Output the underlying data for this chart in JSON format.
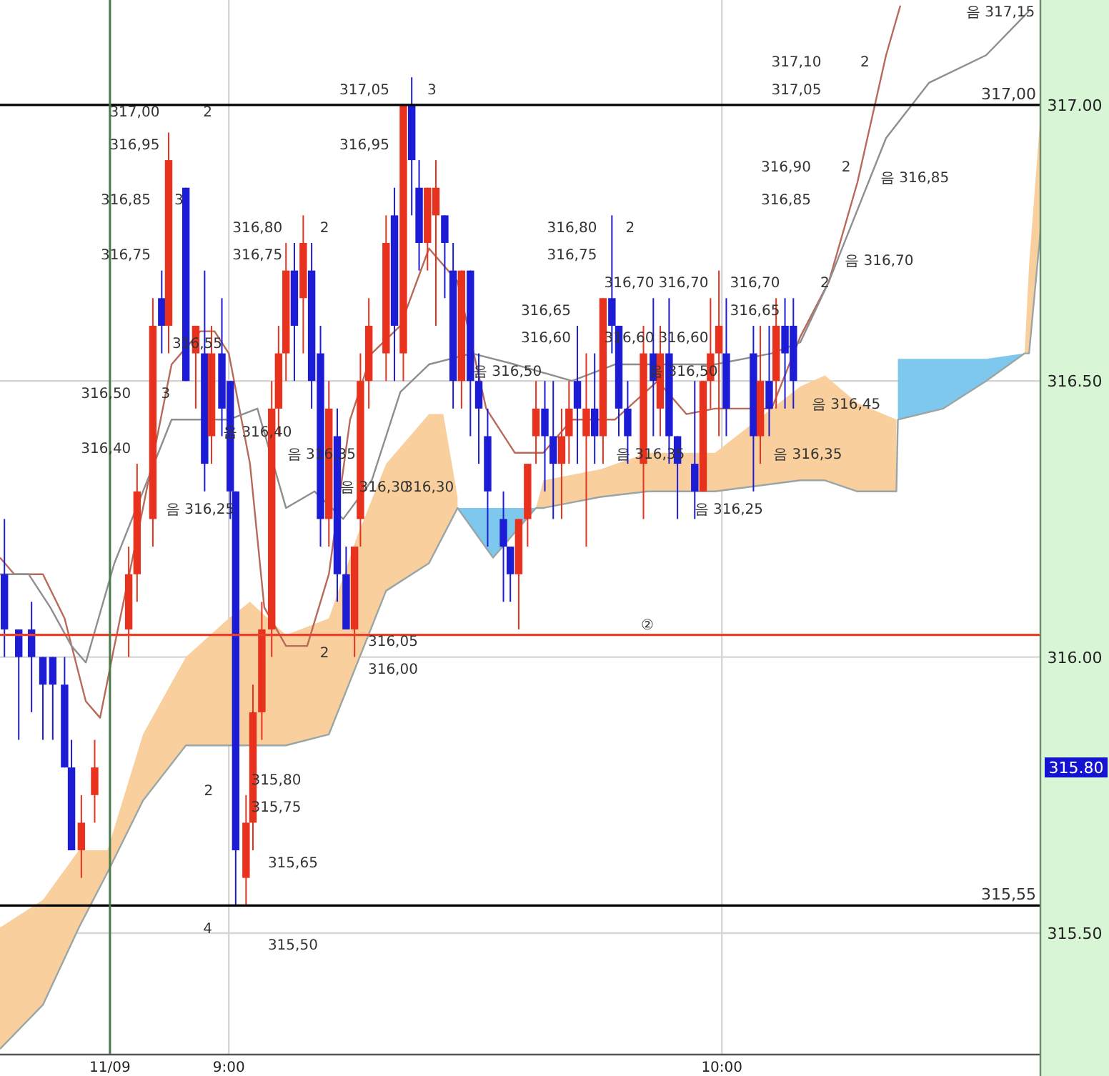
{
  "chart_data": {
    "type": "candlestick",
    "x": [
      8.545,
      8.574,
      8.6,
      8.623,
      8.643,
      8.667,
      8.681,
      8.701,
      8.728,
      8.797,
      8.814,
      8.846,
      8.864,
      8.878,
      8.913,
      8.933,
      8.951,
      8.965,
      8.986,
      9.003,
      9.014,
      9.035,
      9.049,
      9.067,
      9.087,
      9.101,
      9.116,
      9.133,
      9.151,
      9.168,
      9.186,
      9.203,
      9.22,
      9.238,
      9.255,
      9.267,
      9.284,
      9.319,
      9.336,
      9.354,
      9.371,
      9.386,
      9.403,
      9.42,
      9.438,
      9.455,
      9.472,
      9.49,
      9.507,
      9.525,
      9.557,
      9.571,
      9.588,
      9.606,
      9.623,
      9.641,
      9.658,
      9.675,
      9.69,
      9.707,
      9.725,
      9.742,
      9.759,
      9.777,
      9.791,
      9.809,
      9.841,
      9.861,
      9.875,
      9.893,
      9.91,
      9.945,
      9.962,
      9.977,
      9.994,
      10.009,
      10.064,
      10.078,
      10.096,
      10.11,
      10.128,
      10.145
    ],
    "ohlc": [
      [
        316.15,
        316.25,
        316.0,
        316.05
      ],
      [
        316.05,
        316.05,
        315.85,
        316.0
      ],
      [
        316.05,
        316.1,
        315.9,
        316.0
      ],
      [
        316.0,
        316.0,
        315.85,
        315.95
      ],
      [
        316.0,
        316.0,
        315.85,
        315.95
      ],
      [
        315.95,
        316.0,
        315.8,
        315.8
      ],
      [
        315.8,
        315.85,
        315.65,
        315.65
      ],
      [
        315.65,
        315.75,
        315.6,
        315.7
      ],
      [
        315.75,
        315.85,
        315.7,
        315.8
      ],
      [
        316.05,
        316.2,
        316.0,
        316.15
      ],
      [
        316.15,
        316.35,
        316.1,
        316.3
      ],
      [
        316.25,
        316.65,
        316.2,
        316.6
      ],
      [
        316.65,
        316.7,
        316.55,
        316.6
      ],
      [
        316.6,
        316.95,
        316.55,
        316.9
      ],
      [
        316.85,
        316.85,
        316.5,
        316.5
      ],
      [
        316.55,
        316.6,
        316.45,
        316.6
      ],
      [
        316.55,
        316.7,
        316.3,
        316.35
      ],
      [
        316.4,
        316.6,
        316.35,
        316.55
      ],
      [
        316.55,
        316.65,
        316.4,
        316.45
      ],
      [
        316.5,
        316.5,
        316.25,
        316.3
      ],
      [
        316.3,
        316.3,
        315.55,
        315.65
      ],
      [
        315.6,
        315.75,
        315.55,
        315.7
      ],
      [
        315.7,
        315.95,
        315.65,
        315.9
      ],
      [
        315.9,
        316.1,
        315.85,
        316.05
      ],
      [
        316.05,
        316.5,
        316.0,
        316.45
      ],
      [
        316.45,
        316.6,
        316.4,
        316.55
      ],
      [
        316.55,
        316.75,
        316.5,
        316.7
      ],
      [
        316.7,
        316.75,
        316.5,
        316.6
      ],
      [
        316.65,
        316.8,
        316.55,
        316.75
      ],
      [
        316.7,
        316.75,
        316.45,
        316.5
      ],
      [
        316.55,
        316.6,
        316.2,
        316.25
      ],
      [
        316.25,
        316.5,
        316.2,
        316.45
      ],
      [
        316.4,
        316.45,
        316.1,
        316.15
      ],
      [
        316.15,
        316.2,
        316.05,
        316.05
      ],
      [
        316.05,
        316.2,
        316.0,
        316.2
      ],
      [
        316.25,
        316.55,
        316.2,
        316.5
      ],
      [
        316.5,
        316.65,
        316.45,
        316.6
      ],
      [
        316.55,
        316.8,
        316.5,
        316.75
      ],
      [
        316.8,
        316.85,
        316.5,
        316.6
      ],
      [
        316.55,
        317.0,
        316.5,
        317.0
      ],
      [
        317.0,
        317.05,
        316.8,
        316.9
      ],
      [
        316.85,
        316.9,
        316.7,
        316.75
      ],
      [
        316.75,
        316.85,
        316.7,
        316.85
      ],
      [
        316.8,
        316.9,
        316.6,
        316.85
      ],
      [
        316.8,
        316.8,
        316.65,
        316.75
      ],
      [
        316.7,
        316.75,
        316.45,
        316.5
      ],
      [
        316.5,
        316.7,
        316.45,
        316.7
      ],
      [
        316.7,
        316.7,
        316.4,
        316.5
      ],
      [
        316.5,
        316.55,
        316.35,
        316.45
      ],
      [
        316.4,
        316.45,
        316.2,
        316.3
      ],
      [
        316.25,
        316.3,
        316.1,
        316.2
      ],
      [
        316.2,
        316.2,
        316.1,
        316.15
      ],
      [
        316.15,
        316.25,
        316.05,
        316.25
      ],
      [
        316.25,
        316.35,
        316.2,
        316.35
      ],
      [
        316.4,
        316.5,
        316.35,
        316.45
      ],
      [
        316.45,
        316.5,
        316.3,
        316.4
      ],
      [
        316.4,
        316.5,
        316.25,
        316.35
      ],
      [
        316.35,
        316.45,
        316.25,
        316.4
      ],
      [
        316.4,
        316.5,
        316.35,
        316.45
      ],
      [
        316.5,
        316.6,
        316.35,
        316.45
      ],
      [
        316.4,
        316.55,
        316.2,
        316.45
      ],
      [
        316.45,
        316.55,
        316.35,
        316.4
      ],
      [
        316.4,
        316.65,
        316.35,
        316.65
      ],
      [
        316.65,
        316.8,
        316.55,
        316.6
      ],
      [
        316.6,
        316.6,
        316.4,
        316.45
      ],
      [
        316.45,
        316.5,
        316.35,
        316.4
      ],
      [
        316.35,
        316.6,
        316.25,
        316.55
      ],
      [
        316.55,
        316.65,
        316.4,
        316.5
      ],
      [
        316.45,
        316.6,
        316.4,
        316.55
      ],
      [
        316.55,
        316.65,
        316.35,
        316.4
      ],
      [
        316.4,
        316.4,
        316.25,
        316.35
      ],
      [
        316.35,
        316.5,
        316.25,
        316.3
      ],
      [
        316.3,
        316.5,
        316.3,
        316.5
      ],
      [
        316.5,
        316.65,
        316.45,
        316.55
      ],
      [
        316.55,
        316.7,
        316.4,
        316.6
      ],
      [
        316.55,
        316.65,
        316.4,
        316.45
      ],
      [
        316.55,
        316.6,
        316.3,
        316.4
      ],
      [
        316.4,
        316.6,
        316.35,
        316.5
      ],
      [
        316.5,
        316.6,
        316.4,
        316.45
      ],
      [
        316.5,
        316.65,
        316.45,
        316.6
      ],
      [
        316.6,
        316.65,
        316.45,
        316.55
      ],
      [
        316.6,
        316.65,
        316.45,
        316.5
      ]
    ],
    "series": [
      {
        "type": "line",
        "color": "#9aa6a6",
        "x": [
          8.536,
          8.623,
          8.696,
          8.754,
          8.826,
          8.913,
          9.0,
          9.043,
          9.116,
          9.203,
          9.261,
          9.319,
          9.406,
          9.435,
          9.464,
          9.536,
          9.623,
          9.638,
          9.754,
          9.85,
          9.986,
          10.159,
          10.209,
          10.275,
          10.354,
          10.357,
          10.449,
          10.536,
          10.614,
          10.623,
          10.646
        ],
        "values": [
          315.29,
          315.37,
          315.51,
          315.61,
          315.74,
          315.84,
          315.84,
          315.84,
          315.84,
          315.86,
          315.99,
          316.12,
          316.17,
          316.22,
          316.27,
          316.18,
          316.27,
          316.27,
          316.29,
          316.3,
          316.3,
          316.32,
          316.32,
          316.3,
          316.3,
          316.43,
          316.45,
          316.5,
          316.55,
          316.55,
          316.77
        ]
      },
      {
        "type": "area",
        "color": "#f9cf9e",
        "x": [
          8.536,
          8.623,
          8.696,
          8.754,
          8.826,
          8.913,
          9.0,
          9.043,
          9.116,
          9.203,
          9.261,
          9.319,
          9.406,
          9.435,
          9.464
        ],
        "values": [
          315.51,
          315.56,
          315.65,
          315.65,
          315.86,
          316.0,
          316.07,
          316.1,
          316.04,
          316.07,
          316.22,
          316.35,
          316.44,
          316.44,
          316.29
        ]
      },
      {
        "type": "area",
        "color": "#f9cf9e",
        "x": [
          9.623,
          9.638,
          9.754,
          9.85,
          9.986,
          10.159,
          10.209,
          10.275,
          10.354
        ],
        "values": [
          316.27,
          316.32,
          316.34,
          316.37,
          316.37,
          316.49,
          316.51,
          316.46,
          316.43
        ]
      },
      {
        "type": "area",
        "color": "#f9cf9e",
        "x": [
          10.614,
          10.623,
          10.646
        ],
        "values": [
          316.55,
          316.71,
          316.98
        ]
      },
      {
        "type": "area",
        "color": "#7ec8ee",
        "x": [
          9.464,
          9.536,
          9.623
        ],
        "values": [
          316.27,
          316.27,
          316.27
        ]
      },
      {
        "type": "area",
        "color": "#7ec8ee",
        "x": [
          10.357,
          10.449,
          10.536,
          10.614
        ],
        "values": [
          316.54,
          316.54,
          316.54,
          316.55
        ]
      },
      {
        "type": "line",
        "color": "#b86a5a",
        "x": [
          8.536,
          8.565,
          8.623,
          8.667,
          8.71,
          8.739,
          8.768,
          8.826,
          8.884,
          8.942,
          8.971,
          9.0,
          9.043,
          9.072,
          9.116,
          9.159,
          9.203,
          9.246,
          9.29,
          9.348,
          9.406,
          9.464,
          9.522,
          9.58,
          9.638,
          9.696,
          9.783,
          9.87,
          9.928,
          9.986,
          10.101,
          10.159,
          10.217,
          10.275,
          10.333,
          10.362
        ],
        "values": [
          316.18,
          316.15,
          316.15,
          316.07,
          315.92,
          315.89,
          316.02,
          316.27,
          316.53,
          316.59,
          316.59,
          316.55,
          316.35,
          316.09,
          316.02,
          316.02,
          316.15,
          316.43,
          316.55,
          316.6,
          316.74,
          316.68,
          316.45,
          316.37,
          316.37,
          316.43,
          316.43,
          316.5,
          316.44,
          316.45,
          316.45,
          316.58,
          316.68,
          316.86,
          317.09,
          317.18
        ]
      },
      {
        "type": "line",
        "color": "#8e8e8e",
        "x": [
          8.536,
          8.594,
          8.638,
          8.681,
          8.71,
          8.768,
          8.826,
          8.884,
          9.0,
          9.058,
          9.116,
          9.174,
          9.232,
          9.29,
          9.348,
          9.406,
          9.493,
          9.58,
          9.696,
          9.783,
          9.986,
          10.101,
          10.159,
          10.217,
          10.275,
          10.333,
          10.42,
          10.536,
          10.623
        ],
        "values": [
          316.15,
          316.15,
          316.09,
          316.02,
          315.99,
          316.17,
          316.3,
          316.43,
          316.43,
          316.45,
          316.27,
          316.3,
          316.25,
          316.32,
          316.48,
          316.53,
          316.55,
          316.53,
          316.5,
          316.53,
          316.53,
          316.55,
          316.57,
          316.68,
          316.81,
          316.94,
          317.04,
          317.09,
          317.17
        ]
      }
    ],
    "xlim": [
      8.536,
      10.646
    ],
    "ylim": [
      315.28,
      317.19
    ],
    "xticks": [
      {
        "value": 8.759,
        "label": "11/09"
      },
      {
        "value": 9,
        "label": "9:00"
      },
      {
        "value": 10,
        "label": "10:00"
      }
    ],
    "yticks": [
      {
        "value": 315.5,
        "label": "315.50"
      },
      {
        "value": 316,
        "label": "316.00"
      },
      {
        "value": 316.5,
        "label": "316.50"
      },
      {
        "value": 317,
        "label": "317.00"
      }
    ],
    "grid": true,
    "ref_lines": [
      {
        "axis": "y",
        "value": 317,
        "label": "317,00",
        "color": "#000000"
      },
      {
        "axis": "y",
        "value": 315.55,
        "label": "315,55",
        "color": "#000000"
      },
      {
        "axis": "y",
        "value": 316.04,
        "color": "#e8402a"
      },
      {
        "axis": "x",
        "value": 8.759,
        "color": "#4a7a4a"
      }
    ],
    "annotations": [
      "317,00",
      "316,95",
      "2",
      "316,85",
      "316,75",
      "3",
      "316,50",
      "316,40",
      "3",
      "316,55",
      "음 316,40",
      "음 316,25",
      "316,80",
      "316,75",
      "2",
      "음 316,35",
      "음 316,30",
      "316,30",
      "317,05",
      "316,95",
      "3",
      "음 316,50",
      "316,80",
      "316,75",
      "2",
      "316,65",
      "316,60",
      "316,70",
      "316,70",
      "316,60",
      "316,60",
      "음 316,50",
      "음 316,35",
      "음 316,25",
      "316,70",
      "316,65",
      "2",
      "음 316,45",
      "음 316,35",
      "음 316,70",
      "316,90",
      "316,85",
      "2",
      "음 316,85",
      "317,10",
      "317,05",
      "2",
      "음 317,15",
      "316,05",
      "316,00",
      "2",
      "315,80",
      "315,75",
      "2",
      "315,65",
      "4",
      "315,50",
      "②",
      "315.80"
    ]
  }
}
